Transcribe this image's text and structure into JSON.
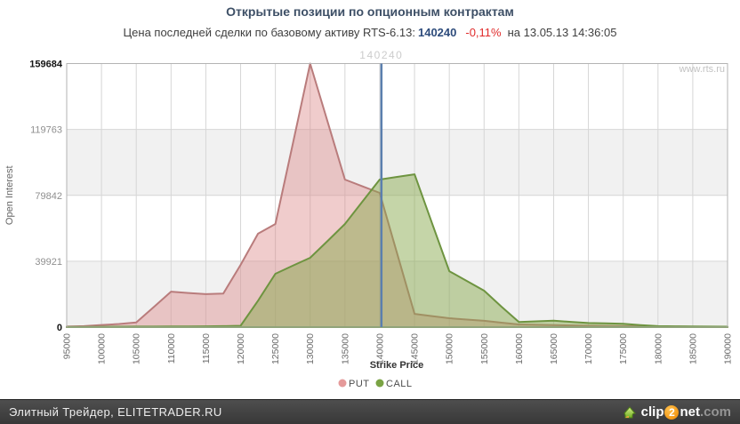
{
  "header": {
    "title": "Открытые позиции по опционным контрактам",
    "subtitle_label": "Цена последней сделки по базовому активу RTS-6.13:",
    "last_price": "140240",
    "change": "-0,11%",
    "timestamp_suffix": "на 13.05.13 14:36:05"
  },
  "watermark": "www.rts.ru",
  "chart_data": {
    "type": "area",
    "xlabel": "Strike Price",
    "ylabel": "Open Interest",
    "xlim": [
      95000,
      190000
    ],
    "ylim": [
      0,
      159684
    ],
    "grid": true,
    "legend_position": "bottom",
    "x_ticks": [
      95000,
      100000,
      105000,
      110000,
      115000,
      120000,
      125000,
      130000,
      135000,
      140000,
      145000,
      150000,
      155000,
      160000,
      165000,
      170000,
      175000,
      180000,
      185000,
      190000
    ],
    "y_ticks": [
      {
        "value": 0,
        "label": "0",
        "bold": true
      },
      {
        "value": 39921,
        "label": "39921",
        "bold": false
      },
      {
        "value": 79842,
        "label": "79842",
        "bold": false
      },
      {
        "value": 119763,
        "label": "119763",
        "bold": false
      },
      {
        "value": 159684,
        "label": "159684",
        "bold": true
      }
    ],
    "price_line": {
      "value": 140240,
      "label": "140240"
    },
    "strikes": [
      95000,
      97500,
      100000,
      102500,
      105000,
      107500,
      110000,
      112500,
      115000,
      117500,
      120000,
      122500,
      125000,
      127500,
      130000,
      132500,
      135000,
      137500,
      140000,
      142500,
      145000,
      147500,
      150000,
      152500,
      155000,
      157500,
      160000,
      162500,
      165000,
      167500,
      170000,
      172500,
      175000,
      177500,
      180000,
      182500,
      185000,
      187500,
      190000
    ],
    "series": [
      {
        "name": "PUT",
        "values": [
          300,
          600,
          1300,
          1900,
          2800,
          12100,
          21500,
          20700,
          20000,
          20300,
          37700,
          56600,
          62500,
          111000,
          159684,
          124500,
          89400,
          85300,
          81300,
          44600,
          8000,
          6700,
          5400,
          4600,
          3800,
          2700,
          1600,
          1400,
          1200,
          1000,
          800,
          700,
          600,
          500,
          400,
          300,
          250,
          200,
          150
        ]
      },
      {
        "name": "CALL",
        "values": [
          100,
          150,
          200,
          250,
          300,
          350,
          400,
          450,
          500,
          600,
          800,
          16000,
          32300,
          37200,
          42000,
          52200,
          62500,
          76000,
          89400,
          91000,
          92600,
          63200,
          33900,
          28000,
          22100,
          12400,
          3100,
          3500,
          3900,
          3200,
          2500,
          2250,
          2000,
          1200,
          600,
          500,
          420,
          350,
          280
        ]
      }
    ],
    "style": {
      "put_fill": "rgba(219,134,134,0.42)",
      "put_stroke": "#b97c7c",
      "put_marker": "#e59a9a",
      "call_fill": "rgba(134,168,74,0.48)",
      "call_stroke": "#6e9440",
      "call_marker": "#7aa344",
      "price_line_color": "#5b7fae",
      "price_label_color": "#cccccc",
      "grid_color": "#d6d6d6",
      "band_color": "#f1f1f1",
      "border_color": "#b3b3b3",
      "tick_color": "#8f8f8f",
      "tick_bold_color": "#141414",
      "x_tick_color": "#6b6b6b",
      "axis_title_color": "#666666",
      "x_title_color": "#333333",
      "legend_text_color": "#4d4d4d",
      "watermark_color": "#c2c2c2"
    }
  },
  "footer": {
    "left_text": "Элитный Трейдер, ELITETRADER.RU",
    "logo": {
      "clip": "clip",
      "two": "2",
      "net": "net",
      "dotcom": ".com"
    }
  }
}
